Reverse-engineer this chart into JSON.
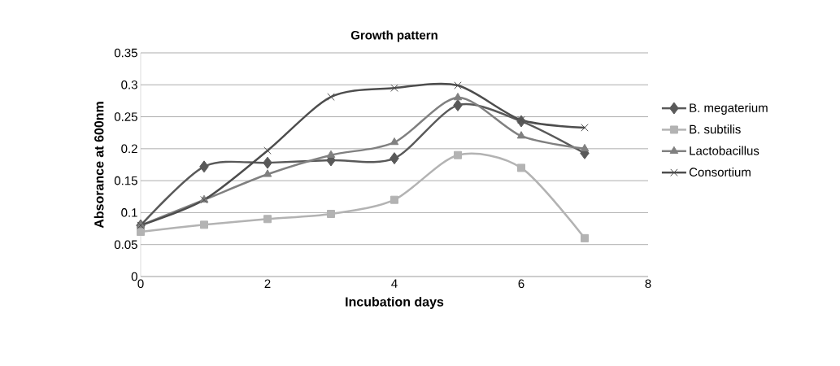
{
  "chart_data": {
    "type": "line",
    "title": "Growth pattern",
    "xlabel": "Incubation days",
    "ylabel": "Absorance at 600nm",
    "x": [
      0,
      1,
      2,
      3,
      4,
      5,
      6,
      7
    ],
    "series": [
      {
        "name": "B. megaterium",
        "color": "#595959",
        "marker": "diamond",
        "values": [
          0.08,
          0.172,
          0.178,
          0.182,
          0.185,
          0.268,
          0.243,
          0.193
        ]
      },
      {
        "name": "B. subtilis",
        "color": "#b3b3b3",
        "marker": "square",
        "values": [
          0.07,
          0.081,
          0.09,
          0.098,
          0.12,
          0.19,
          0.17,
          0.06
        ]
      },
      {
        "name": "Lactobacillus",
        "color": "#808080",
        "marker": "triangle",
        "values": [
          0.08,
          0.12,
          0.16,
          0.19,
          0.21,
          0.28,
          0.22,
          0.2
        ]
      },
      {
        "name": "Consortium",
        "color": "#4d4d4d",
        "marker": "cross",
        "values": [
          0.08,
          0.12,
          0.197,
          0.281,
          0.295,
          0.299,
          0.245,
          0.233
        ]
      }
    ],
    "xlim": [
      0,
      8
    ],
    "xticks": [
      0,
      2,
      4,
      6,
      8
    ],
    "ylim": [
      0,
      0.35
    ],
    "yticks": [
      0,
      0.05,
      0.1,
      0.15,
      0.2,
      0.25,
      0.3,
      0.35
    ],
    "grid": "y",
    "legend": "right",
    "line_style": "solid"
  }
}
